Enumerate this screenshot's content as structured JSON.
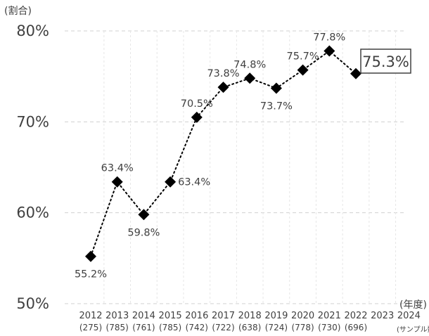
{
  "chart_data": {
    "type": "line",
    "ylabel": "(割合)",
    "xlabel": "(年度)",
    "sample_label": "(サンプル数)",
    "yticks": [
      "50%",
      "60%",
      "70%",
      "80%"
    ],
    "ylim": [
      50,
      80
    ],
    "grid": true,
    "x": [
      "2012",
      "2013",
      "2014",
      "2015",
      "2016",
      "2017",
      "2018",
      "2019",
      "2020",
      "2021",
      "2022",
      "2023",
      "2024"
    ],
    "samples": [
      "(275)",
      "(785)",
      "(761)",
      "(785)",
      "(742)",
      "(722)",
      "(638)",
      "(724)",
      "(778)",
      "(730)",
      "(696)",
      "",
      ""
    ],
    "series": [
      {
        "values": [
          55.2,
          63.4,
          59.8,
          63.4,
          70.5,
          73.8,
          74.8,
          73.7,
          75.7,
          77.8,
          75.3,
          null,
          null
        ],
        "labels": [
          "55.2%",
          "63.4%",
          "59.8%",
          "63.4%",
          "70.5%",
          "73.8%",
          "74.8%",
          "73.7%",
          "75.7%",
          "77.8%",
          "75.3%",
          "",
          ""
        ],
        "label_pos": [
          "below",
          "above",
          "below",
          "right",
          "above",
          "above",
          "above",
          "below",
          "above",
          "above",
          "boxed",
          "",
          ""
        ]
      }
    ],
    "highlight_label": "75.3%",
    "line_style": "dotted",
    "marker": "diamond",
    "colors": {
      "line": "#000000",
      "grid": "#d0d0d0",
      "text": "#404040"
    }
  }
}
